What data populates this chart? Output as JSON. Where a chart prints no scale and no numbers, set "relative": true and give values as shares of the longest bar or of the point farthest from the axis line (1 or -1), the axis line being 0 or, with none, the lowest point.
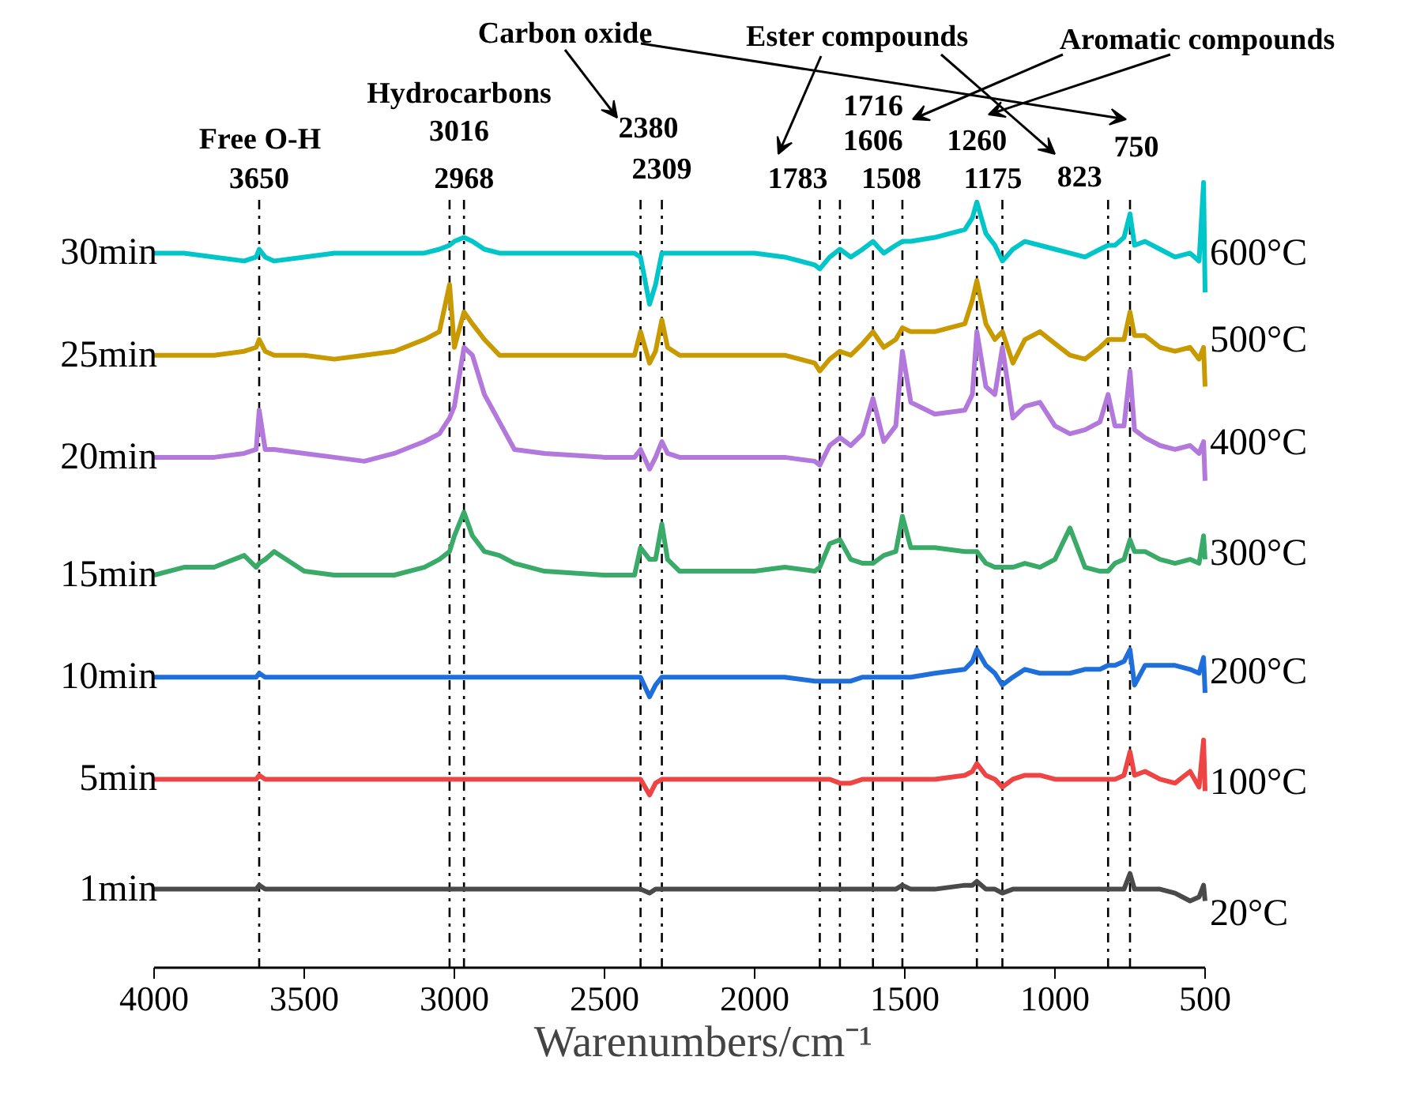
{
  "chart_data": {
    "type": "line",
    "relative": true,
    "xlabel": "Warenumbers/cm⁻¹",
    "x": [
      4000,
      3900,
      3800,
      3700,
      3660,
      3650,
      3630,
      3600,
      3500,
      3400,
      3300,
      3200,
      3100,
      3050,
      3016,
      3000,
      2968,
      2940,
      2900,
      2850,
      2800,
      2700,
      2500,
      2400,
      2380,
      2350,
      2330,
      2309,
      2290,
      2250,
      2100,
      2000,
      1900,
      1800,
      1783,
      1750,
      1716,
      1680,
      1640,
      1606,
      1570,
      1530,
      1508,
      1480,
      1400,
      1300,
      1275,
      1260,
      1230,
      1200,
      1175,
      1140,
      1100,
      1050,
      1000,
      950,
      900,
      850,
      823,
      800,
      770,
      750,
      735,
      700,
      650,
      600,
      550,
      520,
      505,
      500
    ],
    "xlim": [
      4000,
      500
    ],
    "xticks": [
      4000,
      3500,
      3000,
      2500,
      2000,
      1500,
      1000,
      500
    ],
    "grid": false,
    "legend": false,
    "line_style": "solid",
    "marker": "none",
    "series": [
      {
        "name": "30min",
        "color": "#00c5c9",
        "values": [
          0.91,
          0.91,
          0.905,
          0.9,
          0.905,
          0.915,
          0.905,
          0.9,
          0.905,
          0.91,
          0.91,
          0.91,
          0.91,
          0.915,
          0.92,
          0.925,
          0.93,
          0.925,
          0.915,
          0.91,
          0.91,
          0.91,
          0.91,
          0.91,
          0.905,
          0.845,
          0.87,
          0.91,
          0.91,
          0.91,
          0.91,
          0.91,
          0.905,
          0.895,
          0.89,
          0.905,
          0.915,
          0.905,
          0.915,
          0.925,
          0.91,
          0.92,
          0.925,
          0.925,
          0.93,
          0.94,
          0.955,
          0.975,
          0.935,
          0.92,
          0.9,
          0.915,
          0.925,
          0.92,
          0.915,
          0.91,
          0.905,
          0.915,
          0.92,
          0.92,
          0.93,
          0.96,
          0.92,
          0.925,
          0.915,
          0.905,
          0.91,
          0.9,
          1.0,
          0.86
        ]
      },
      {
        "name": "25min",
        "color": "#c99a00",
        "values": [
          0.78,
          0.78,
          0.78,
          0.785,
          0.79,
          0.8,
          0.785,
          0.78,
          0.78,
          0.775,
          0.78,
          0.785,
          0.8,
          0.81,
          0.87,
          0.79,
          0.835,
          0.82,
          0.8,
          0.78,
          0.78,
          0.78,
          0.78,
          0.78,
          0.81,
          0.77,
          0.785,
          0.825,
          0.79,
          0.78,
          0.78,
          0.78,
          0.78,
          0.77,
          0.76,
          0.775,
          0.785,
          0.78,
          0.795,
          0.81,
          0.79,
          0.8,
          0.815,
          0.81,
          0.81,
          0.82,
          0.85,
          0.875,
          0.82,
          0.8,
          0.81,
          0.77,
          0.8,
          0.81,
          0.795,
          0.78,
          0.775,
          0.79,
          0.8,
          0.8,
          0.8,
          0.835,
          0.805,
          0.805,
          0.79,
          0.785,
          0.79,
          0.775,
          0.79,
          0.74
        ]
      },
      {
        "name": "20min",
        "color": "#b278dc",
        "values": [
          0.65,
          0.65,
          0.65,
          0.655,
          0.66,
          0.71,
          0.66,
          0.66,
          0.655,
          0.65,
          0.645,
          0.655,
          0.67,
          0.68,
          0.7,
          0.715,
          0.79,
          0.78,
          0.73,
          0.695,
          0.66,
          0.655,
          0.65,
          0.65,
          0.66,
          0.635,
          0.65,
          0.67,
          0.655,
          0.65,
          0.65,
          0.65,
          0.65,
          0.645,
          0.64,
          0.665,
          0.675,
          0.665,
          0.68,
          0.725,
          0.67,
          0.69,
          0.785,
          0.72,
          0.705,
          0.71,
          0.73,
          0.81,
          0.74,
          0.73,
          0.79,
          0.7,
          0.715,
          0.72,
          0.69,
          0.68,
          0.685,
          0.695,
          0.73,
          0.69,
          0.69,
          0.76,
          0.685,
          0.675,
          0.665,
          0.66,
          0.665,
          0.655,
          0.67,
          0.62
        ]
      },
      {
        "name": "15min",
        "color": "#3aaa68",
        "values": [
          0.5,
          0.51,
          0.51,
          0.525,
          0.51,
          0.515,
          0.52,
          0.53,
          0.505,
          0.5,
          0.5,
          0.5,
          0.51,
          0.52,
          0.53,
          0.55,
          0.58,
          0.55,
          0.53,
          0.525,
          0.515,
          0.505,
          0.5,
          0.5,
          0.535,
          0.52,
          0.52,
          0.565,
          0.52,
          0.505,
          0.505,
          0.505,
          0.51,
          0.505,
          0.51,
          0.54,
          0.545,
          0.52,
          0.515,
          0.515,
          0.525,
          0.53,
          0.575,
          0.535,
          0.535,
          0.53,
          0.53,
          0.53,
          0.515,
          0.51,
          0.51,
          0.51,
          0.515,
          0.51,
          0.52,
          0.56,
          0.51,
          0.505,
          0.505,
          0.515,
          0.52,
          0.545,
          0.53,
          0.53,
          0.52,
          0.515,
          0.52,
          0.515,
          0.55,
          0.52
        ]
      },
      {
        "name": "10min",
        "color": "#1e6fdc",
        "values": [
          0.37,
          0.37,
          0.37,
          0.37,
          0.37,
          0.375,
          0.37,
          0.37,
          0.37,
          0.37,
          0.37,
          0.37,
          0.37,
          0.37,
          0.37,
          0.37,
          0.37,
          0.37,
          0.37,
          0.37,
          0.37,
          0.37,
          0.37,
          0.37,
          0.37,
          0.345,
          0.36,
          0.37,
          0.37,
          0.37,
          0.37,
          0.37,
          0.37,
          0.365,
          0.365,
          0.365,
          0.365,
          0.365,
          0.37,
          0.37,
          0.37,
          0.37,
          0.37,
          0.37,
          0.375,
          0.38,
          0.39,
          0.405,
          0.385,
          0.375,
          0.36,
          0.37,
          0.38,
          0.375,
          0.375,
          0.375,
          0.38,
          0.38,
          0.385,
          0.385,
          0.39,
          0.405,
          0.36,
          0.385,
          0.385,
          0.385,
          0.38,
          0.375,
          0.395,
          0.35
        ]
      },
      {
        "name": "5min",
        "color": "#ee4444",
        "values": [
          0.24,
          0.24,
          0.24,
          0.24,
          0.24,
          0.245,
          0.24,
          0.24,
          0.24,
          0.24,
          0.24,
          0.24,
          0.24,
          0.24,
          0.24,
          0.24,
          0.24,
          0.24,
          0.24,
          0.24,
          0.24,
          0.24,
          0.24,
          0.24,
          0.24,
          0.22,
          0.235,
          0.24,
          0.24,
          0.24,
          0.24,
          0.24,
          0.24,
          0.24,
          0.24,
          0.24,
          0.235,
          0.235,
          0.24,
          0.24,
          0.24,
          0.24,
          0.24,
          0.24,
          0.24,
          0.245,
          0.25,
          0.26,
          0.245,
          0.24,
          0.23,
          0.24,
          0.245,
          0.245,
          0.24,
          0.24,
          0.24,
          0.24,
          0.24,
          0.24,
          0.245,
          0.275,
          0.245,
          0.25,
          0.24,
          0.235,
          0.25,
          0.23,
          0.29,
          0.225
        ]
      },
      {
        "name": "1min",
        "color": "#4a4a4a",
        "values": [
          0.1,
          0.1,
          0.1,
          0.1,
          0.1,
          0.105,
          0.1,
          0.1,
          0.1,
          0.1,
          0.1,
          0.1,
          0.1,
          0.1,
          0.1,
          0.1,
          0.1,
          0.1,
          0.1,
          0.1,
          0.1,
          0.1,
          0.1,
          0.1,
          0.1,
          0.095,
          0.1,
          0.1,
          0.1,
          0.1,
          0.1,
          0.1,
          0.1,
          0.1,
          0.1,
          0.1,
          0.1,
          0.1,
          0.1,
          0.1,
          0.1,
          0.1,
          0.105,
          0.1,
          0.1,
          0.105,
          0.105,
          0.11,
          0.1,
          0.1,
          0.095,
          0.1,
          0.1,
          0.1,
          0.1,
          0.1,
          0.1,
          0.1,
          0.1,
          0.1,
          0.1,
          0.12,
          0.1,
          0.1,
          0.1,
          0.095,
          0.085,
          0.09,
          0.105,
          0.085
        ]
      }
    ],
    "ref_lines": [
      {
        "axis": "x",
        "value": 3650,
        "label": "3650",
        "line_style": "dashdot",
        "color": "#000000"
      },
      {
        "axis": "x",
        "value": 3016,
        "label": "3016",
        "line_style": "dashdot",
        "color": "#000000"
      },
      {
        "axis": "x",
        "value": 2968,
        "label": "2968",
        "line_style": "dashdot",
        "color": "#000000"
      },
      {
        "axis": "x",
        "value": 2380,
        "label": "2380",
        "line_style": "dashdot",
        "color": "#000000"
      },
      {
        "axis": "x",
        "value": 2309,
        "label": "2309",
        "line_style": "dashdot",
        "color": "#000000"
      },
      {
        "axis": "x",
        "value": 1783,
        "label": "1783",
        "line_style": "dashdot",
        "color": "#000000"
      },
      {
        "axis": "x",
        "value": 1716,
        "label": "1716",
        "line_style": "dashdot",
        "color": "#000000"
      },
      {
        "axis": "x",
        "value": 1606,
        "label": "1606",
        "line_style": "dashdot",
        "color": "#000000"
      },
      {
        "axis": "x",
        "value": 1508,
        "label": "1508",
        "line_style": "dashdot",
        "color": "#000000"
      },
      {
        "axis": "x",
        "value": 1260,
        "label": "1260",
        "line_style": "dashdot",
        "color": "#000000"
      },
      {
        "axis": "x",
        "value": 1175,
        "label": "1175",
        "line_style": "dashdot",
        "color": "#000000"
      },
      {
        "axis": "x",
        "value": 823,
        "label": "823",
        "line_style": "dashdot",
        "color": "#000000"
      },
      {
        "axis": "x",
        "value": 750,
        "label": "750",
        "line_style": "dashdot",
        "color": "#000000"
      }
    ],
    "annotations": [
      "Free O-H",
      "Hydrocarbons",
      "Carbon oxide",
      "Ester compounds",
      "Aromatic compounds",
      "600°C",
      "500°C",
      "400°C",
      "300°C",
      "200°C",
      "100°C",
      "20°C"
    ]
  }
}
